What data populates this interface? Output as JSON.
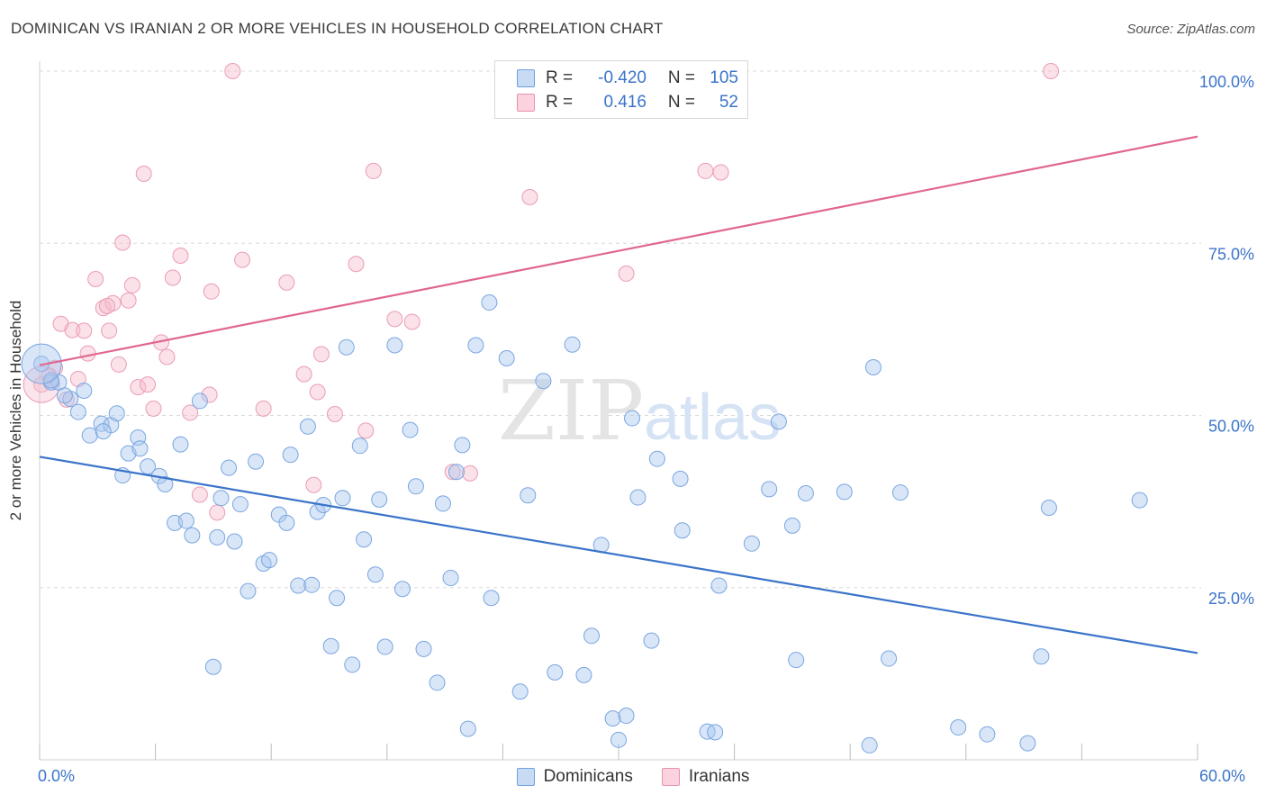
{
  "title": "DOMINICAN VS IRANIAN 2 OR MORE VEHICLES IN HOUSEHOLD CORRELATION CHART",
  "source": "Source: ZipAtlas.com",
  "watermark": {
    "zip": "ZIP",
    "atlas": "atlas"
  },
  "legend": {
    "rows": [
      {
        "r_label": "R =",
        "r_value": "-0.420",
        "n_label": "N =",
        "n_value": "105",
        "color": "#a8c8f0",
        "border": "#6f9fde"
      },
      {
        "r_label": "R =",
        "r_value": "0.416",
        "n_label": "N =",
        "n_value": "52",
        "color": "#f6bccd",
        "border": "#e891ad"
      }
    ]
  },
  "bottom_legend": [
    {
      "label": "Dominicans",
      "color": "#c7dbf5",
      "border": "#6f9fde"
    },
    {
      "label": "Iranians",
      "color": "#fbd2de",
      "border": "#e891ad"
    }
  ],
  "chart_data": {
    "type": "scatter",
    "title": "DOMINICAN VS IRANIAN 2 OR MORE VEHICLES IN HOUSEHOLD CORRELATION CHART",
    "xlabel": "",
    "ylabel": "2 or more Vehicles in Household",
    "x_tick_labels": [
      "0.0%",
      "60.0%"
    ],
    "y_tick_labels": [
      "100.0%",
      "75.0%",
      "50.0%",
      "25.0%"
    ],
    "xlim": [
      0,
      60
    ],
    "ylim": [
      0,
      100
    ],
    "y_ticks": [
      100,
      75,
      50,
      25
    ],
    "grid": true,
    "legend_position": "top-center",
    "colors": {
      "dominicans": "#3b74c9",
      "iranians": "#e0668f"
    },
    "series": [
      {
        "name": "Dominicans",
        "trend": [
          [
            0,
            44.0
          ],
          [
            60,
            15.5
          ]
        ],
        "points": [
          [
            0.1,
            57.5
          ],
          [
            0.6,
            54.8
          ],
          [
            1.0,
            54.8
          ],
          [
            1.6,
            52.4
          ],
          [
            2.3,
            53.6
          ],
          [
            2.0,
            50.5
          ],
          [
            2.6,
            47.1
          ],
          [
            3.2,
            48.8
          ],
          [
            3.7,
            48.6
          ],
          [
            4.0,
            50.3
          ],
          [
            4.3,
            41.3
          ],
          [
            4.6,
            44.5
          ],
          [
            5.1,
            46.8
          ],
          [
            5.2,
            45.2
          ],
          [
            5.6,
            42.6
          ],
          [
            6.2,
            41.2
          ],
          [
            6.5,
            40.0
          ],
          [
            7.0,
            34.4
          ],
          [
            7.3,
            45.8
          ],
          [
            7.6,
            34.7
          ],
          [
            7.9,
            32.6
          ],
          [
            8.3,
            52.1
          ],
          [
            9.0,
            13.5
          ],
          [
            9.2,
            32.3
          ],
          [
            9.4,
            38.0
          ],
          [
            9.8,
            42.4
          ],
          [
            10.1,
            31.7
          ],
          [
            10.4,
            37.1
          ],
          [
            10.8,
            24.5
          ],
          [
            11.2,
            43.3
          ],
          [
            11.6,
            28.5
          ],
          [
            11.9,
            29.0
          ],
          [
            12.4,
            35.6
          ],
          [
            12.8,
            34.4
          ],
          [
            13.0,
            44.3
          ],
          [
            13.4,
            25.3
          ],
          [
            13.9,
            48.4
          ],
          [
            14.1,
            25.4
          ],
          [
            14.4,
            36.0
          ],
          [
            14.7,
            37.0
          ],
          [
            15.1,
            16.5
          ],
          [
            15.4,
            23.5
          ],
          [
            15.7,
            38.0
          ],
          [
            15.9,
            59.9
          ],
          [
            16.2,
            13.8
          ],
          [
            16.6,
            45.6
          ],
          [
            16.8,
            32.0
          ],
          [
            17.4,
            26.9
          ],
          [
            17.6,
            37.8
          ],
          [
            17.9,
            16.4
          ],
          [
            18.4,
            60.2
          ],
          [
            18.8,
            24.8
          ],
          [
            19.2,
            47.9
          ],
          [
            19.5,
            39.7
          ],
          [
            19.9,
            16.1
          ],
          [
            20.6,
            11.2
          ],
          [
            20.9,
            37.2
          ],
          [
            21.3,
            26.4
          ],
          [
            21.6,
            41.8
          ],
          [
            21.9,
            45.7
          ],
          [
            22.2,
            4.5
          ],
          [
            22.6,
            60.2
          ],
          [
            23.3,
            66.4
          ],
          [
            23.4,
            23.5
          ],
          [
            24.2,
            58.3
          ],
          [
            24.9,
            9.9
          ],
          [
            25.3,
            38.4
          ],
          [
            26.1,
            55.0
          ],
          [
            26.7,
            12.7
          ],
          [
            27.6,
            60.3
          ],
          [
            28.2,
            12.3
          ],
          [
            28.6,
            18.0
          ],
          [
            29.1,
            31.2
          ],
          [
            29.7,
            6.0
          ],
          [
            30.0,
            2.9
          ],
          [
            30.4,
            6.4
          ],
          [
            30.7,
            49.6
          ],
          [
            31.0,
            38.1
          ],
          [
            31.7,
            17.3
          ],
          [
            32.0,
            43.7
          ],
          [
            33.2,
            40.8
          ],
          [
            33.3,
            33.3
          ],
          [
            34.6,
            4.1
          ],
          [
            35.0,
            4.0
          ],
          [
            35.2,
            25.3
          ],
          [
            36.9,
            31.4
          ],
          [
            37.8,
            39.3
          ],
          [
            38.3,
            49.1
          ],
          [
            39.0,
            34.0
          ],
          [
            39.2,
            14.5
          ],
          [
            39.7,
            38.7
          ],
          [
            41.7,
            38.9
          ],
          [
            43.2,
            57.0
          ],
          [
            43.0,
            2.1
          ],
          [
            44.0,
            14.7
          ],
          [
            44.6,
            38.8
          ],
          [
            47.6,
            4.7
          ],
          [
            49.1,
            3.7
          ],
          [
            51.2,
            2.4
          ],
          [
            51.9,
            15.0
          ],
          [
            52.3,
            36.6
          ],
          [
            57.0,
            37.7
          ],
          [
            0.6,
            55.1
          ],
          [
            1.3,
            52.9
          ],
          [
            3.3,
            47.7
          ]
        ]
      },
      {
        "name": "Iranians",
        "trend": [
          [
            0,
            57.3
          ],
          [
            60,
            90.5
          ]
        ],
        "points": [
          [
            0.1,
            54.5
          ],
          [
            0.5,
            55.8
          ],
          [
            0.8,
            56.9
          ],
          [
            1.1,
            63.3
          ],
          [
            1.4,
            52.3
          ],
          [
            1.7,
            62.4
          ],
          [
            2.0,
            55.3
          ],
          [
            2.3,
            62.3
          ],
          [
            2.5,
            59.0
          ],
          [
            2.9,
            69.8
          ],
          [
            3.3,
            65.6
          ],
          [
            3.6,
            62.3
          ],
          [
            3.8,
            66.3
          ],
          [
            4.1,
            57.4
          ],
          [
            4.3,
            75.1
          ],
          [
            4.6,
            66.7
          ],
          [
            4.8,
            68.9
          ],
          [
            5.1,
            54.1
          ],
          [
            5.4,
            85.1
          ],
          [
            5.6,
            54.5
          ],
          [
            5.9,
            51.0
          ],
          [
            6.3,
            60.6
          ],
          [
            6.6,
            58.5
          ],
          [
            6.9,
            70.0
          ],
          [
            7.3,
            73.2
          ],
          [
            7.8,
            50.4
          ],
          [
            8.3,
            38.5
          ],
          [
            8.8,
            53.0
          ],
          [
            8.9,
            68.0
          ],
          [
            9.2,
            35.9
          ],
          [
            10.0,
            100.0
          ],
          [
            10.5,
            72.6
          ],
          [
            11.6,
            51.0
          ],
          [
            12.8,
            69.3
          ],
          [
            13.7,
            56.0
          ],
          [
            14.2,
            39.9
          ],
          [
            14.4,
            53.4
          ],
          [
            14.6,
            58.9
          ],
          [
            15.3,
            50.2
          ],
          [
            16.4,
            72.0
          ],
          [
            16.9,
            47.8
          ],
          [
            17.3,
            85.5
          ],
          [
            18.4,
            64.0
          ],
          [
            19.3,
            63.6
          ],
          [
            21.4,
            41.8
          ],
          [
            22.3,
            41.6
          ],
          [
            25.4,
            81.7
          ],
          [
            30.4,
            70.6
          ],
          [
            34.5,
            85.5
          ],
          [
            35.3,
            85.3
          ],
          [
            52.4,
            100.0
          ],
          [
            3.5,
            65.9
          ]
        ]
      }
    ]
  }
}
